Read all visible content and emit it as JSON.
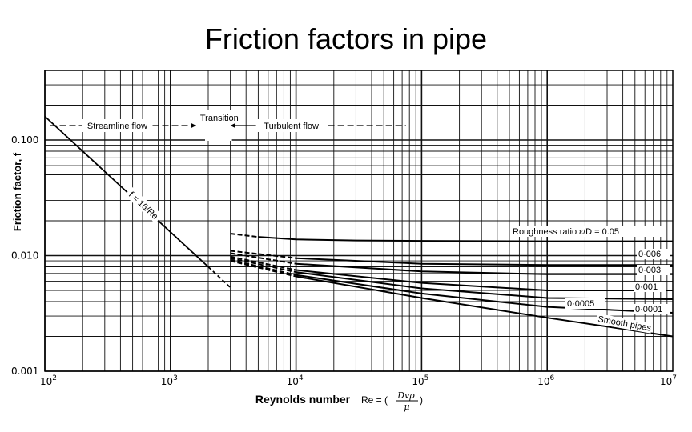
{
  "title": "Friction factors in pipe",
  "chart_data": {
    "type": "line",
    "title": "Friction factors in pipe",
    "xlabel": "Reynolds number",
    "xlabel_formula": {
      "prefix": "Re = (",
      "numerator": "Dvρ",
      "denominator": "μ",
      "suffix": ")"
    },
    "ylabel": "Friction factor, f",
    "x_scale": "log",
    "y_scale": "log",
    "xlim": [
      100,
      10000000
    ],
    "ylim": [
      0.001,
      0.4
    ],
    "grid": true,
    "x_ticks": [
      {
        "base": "10",
        "exp": "2",
        "value": 100
      },
      {
        "base": "10",
        "exp": "3",
        "value": 1000
      },
      {
        "base": "10",
        "exp": "4",
        "value": 10000
      },
      {
        "base": "10",
        "exp": "5",
        "value": 100000
      },
      {
        "base": "10",
        "exp": "6",
        "value": 1000000
      },
      {
        "base": "10",
        "exp": "7",
        "value": 10000000
      }
    ],
    "y_ticks": [
      {
        "label": "0.001",
        "value": 0.001
      },
      {
        "label": "0.010",
        "value": 0.01
      },
      {
        "label": "0.100",
        "value": 0.1
      }
    ],
    "regions": [
      {
        "label": "Streamline flow",
        "from": 110,
        "to": 1600
      },
      {
        "label": "Transition",
        "from": 2000,
        "to": 3000
      },
      {
        "label": "Turbulent flow",
        "from": 3000,
        "to": 75000
      }
    ],
    "laminar": {
      "label": "f = 16/Re",
      "x": [
        100,
        2000
      ],
      "y": [
        0.16,
        0.008
      ],
      "dashed_x": [
        2000,
        3000
      ],
      "dashed_y": [
        0.008,
        0.0053
      ]
    },
    "series": [
      {
        "name": "Roughness ratio ε/D = 0.05",
        "x": [
          3000,
          5000,
          10000,
          30000,
          100000,
          1000000,
          10000000
        ],
        "y": [
          0.0155,
          0.0145,
          0.0138,
          0.0135,
          0.0134,
          0.0133,
          0.0133
        ]
      },
      {
        "name": "0·006",
        "x": [
          3000,
          10000,
          100000,
          1000000,
          10000000
        ],
        "y": [
          0.011,
          0.0095,
          0.0085,
          0.0083,
          0.0083
        ]
      },
      {
        "name": "0·003",
        "x": [
          3000,
          10000,
          100000,
          1000000,
          10000000
        ],
        "y": [
          0.0105,
          0.0085,
          0.0073,
          0.0069,
          0.0069
        ]
      },
      {
        "name": "0·001",
        "x": [
          3000,
          10000,
          100000,
          1000000,
          10000000
        ],
        "y": [
          0.0098,
          0.0075,
          0.0058,
          0.005,
          0.005
        ]
      },
      {
        "name": "0·0005",
        "x": [
          3000,
          10000,
          100000,
          1000000,
          10000000
        ],
        "y": [
          0.0095,
          0.0072,
          0.0052,
          0.0043,
          0.0042
        ]
      },
      {
        "name": "0·0001",
        "x": [
          3000,
          10000,
          100000,
          1000000,
          10000000
        ],
        "y": [
          0.0092,
          0.0068,
          0.0047,
          0.0036,
          0.0032
        ]
      },
      {
        "name": "Smooth pipes",
        "x": [
          3000,
          10000,
          100000,
          1000000,
          10000000
        ],
        "y": [
          0.009,
          0.0066,
          0.0043,
          0.0029,
          0.002
        ]
      }
    ]
  }
}
